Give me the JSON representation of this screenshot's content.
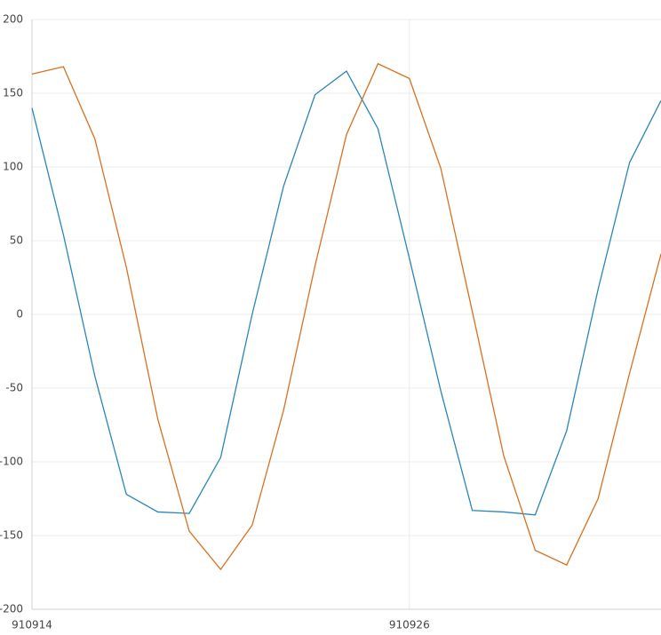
{
  "chart_data": {
    "type": "line",
    "categories": [
      "910914",
      null,
      null,
      null,
      null,
      null,
      null,
      null,
      null,
      null,
      null,
      null,
      "910926",
      null,
      null,
      null,
      null,
      null,
      null,
      null,
      null
    ],
    "series": [
      {
        "color": "#2a86b8",
        "values": [
          140,
          54,
          -42,
          -122,
          -134,
          -135,
          -97,
          0,
          87,
          149,
          165,
          126,
          38,
          -52,
          -133,
          -134,
          -136,
          -79,
          17,
          103,
          145
        ]
      },
      {
        "color": "#d9701f",
        "values": [
          163,
          168,
          119,
          32,
          -71,
          -147,
          -173,
          -143,
          -65,
          33,
          122,
          170,
          160,
          99,
          2,
          -96,
          -160,
          -170,
          -125,
          -40,
          41
        ]
      }
    ],
    "ylim": [
      -200,
      200
    ],
    "yticks": [
      -200,
      -150,
      -100,
      -50,
      0,
      50,
      100,
      150,
      200
    ],
    "grid": true
  }
}
